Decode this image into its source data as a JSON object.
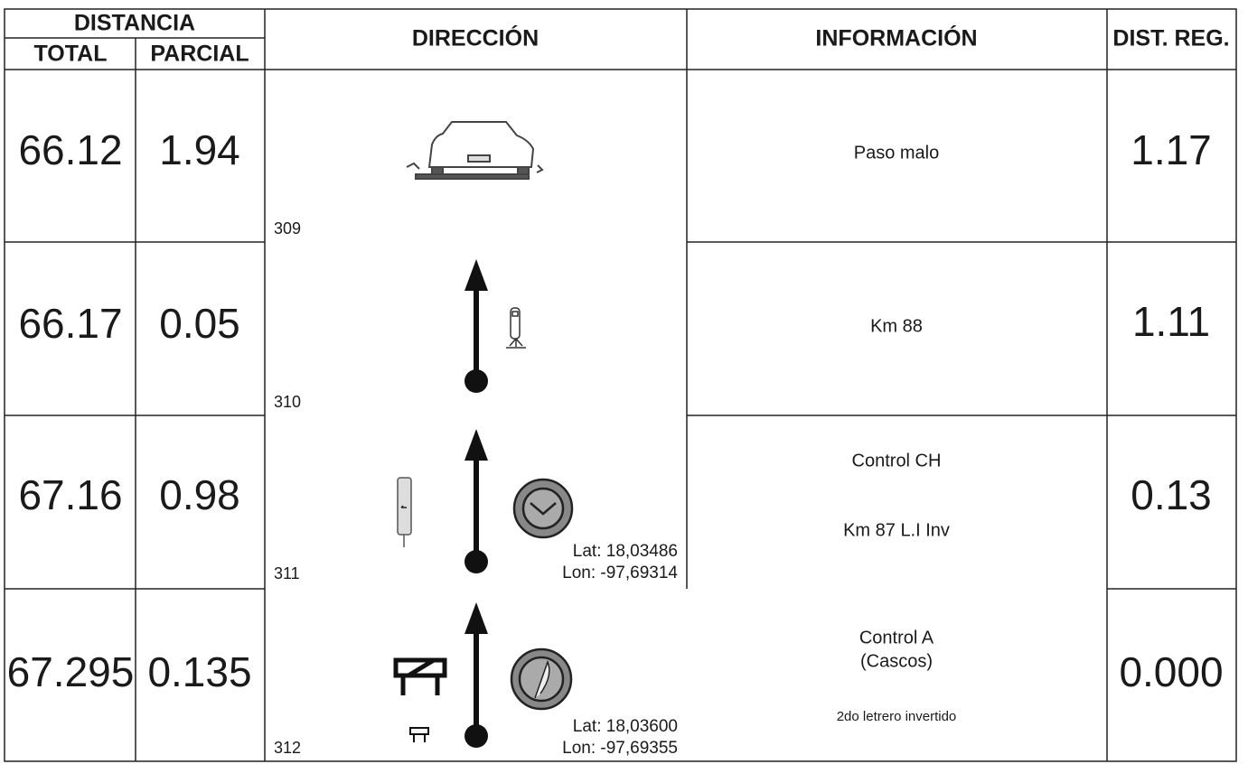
{
  "header": {
    "distancia": "DISTANCIA",
    "total": "TOTAL",
    "parcial": "PARCIAL",
    "direccion": "DIRECCIÓN",
    "informacion": "INFORMACIÓN",
    "dist_reg": "DIST. REG."
  },
  "rows": [
    {
      "total": "66.12",
      "parcial": "1.94",
      "number": "309",
      "info": [
        "Paso malo"
      ],
      "dist_reg": "1.17"
    },
    {
      "total": "66.17",
      "parcial": "0.05",
      "number": "310",
      "info": [
        "Km 88"
      ],
      "dist_reg": "1.11"
    },
    {
      "total": "67.16",
      "parcial": "0.98",
      "number": "311",
      "lat": "Lat: 18,03486",
      "lon": "Lon: -97,69314",
      "info": [
        "Control CH",
        "Km 87 L.I Inv"
      ],
      "dist_reg": "0.13"
    },
    {
      "total": "67.295",
      "parcial": "0.135",
      "number": "312",
      "lat": "Lat: 18,03600",
      "lon": "Lon: -97,69355",
      "info": [
        "Control A",
        "(Cascos)"
      ],
      "note": "2do letrero invertido",
      "dist_reg": "0.000"
    }
  ]
}
